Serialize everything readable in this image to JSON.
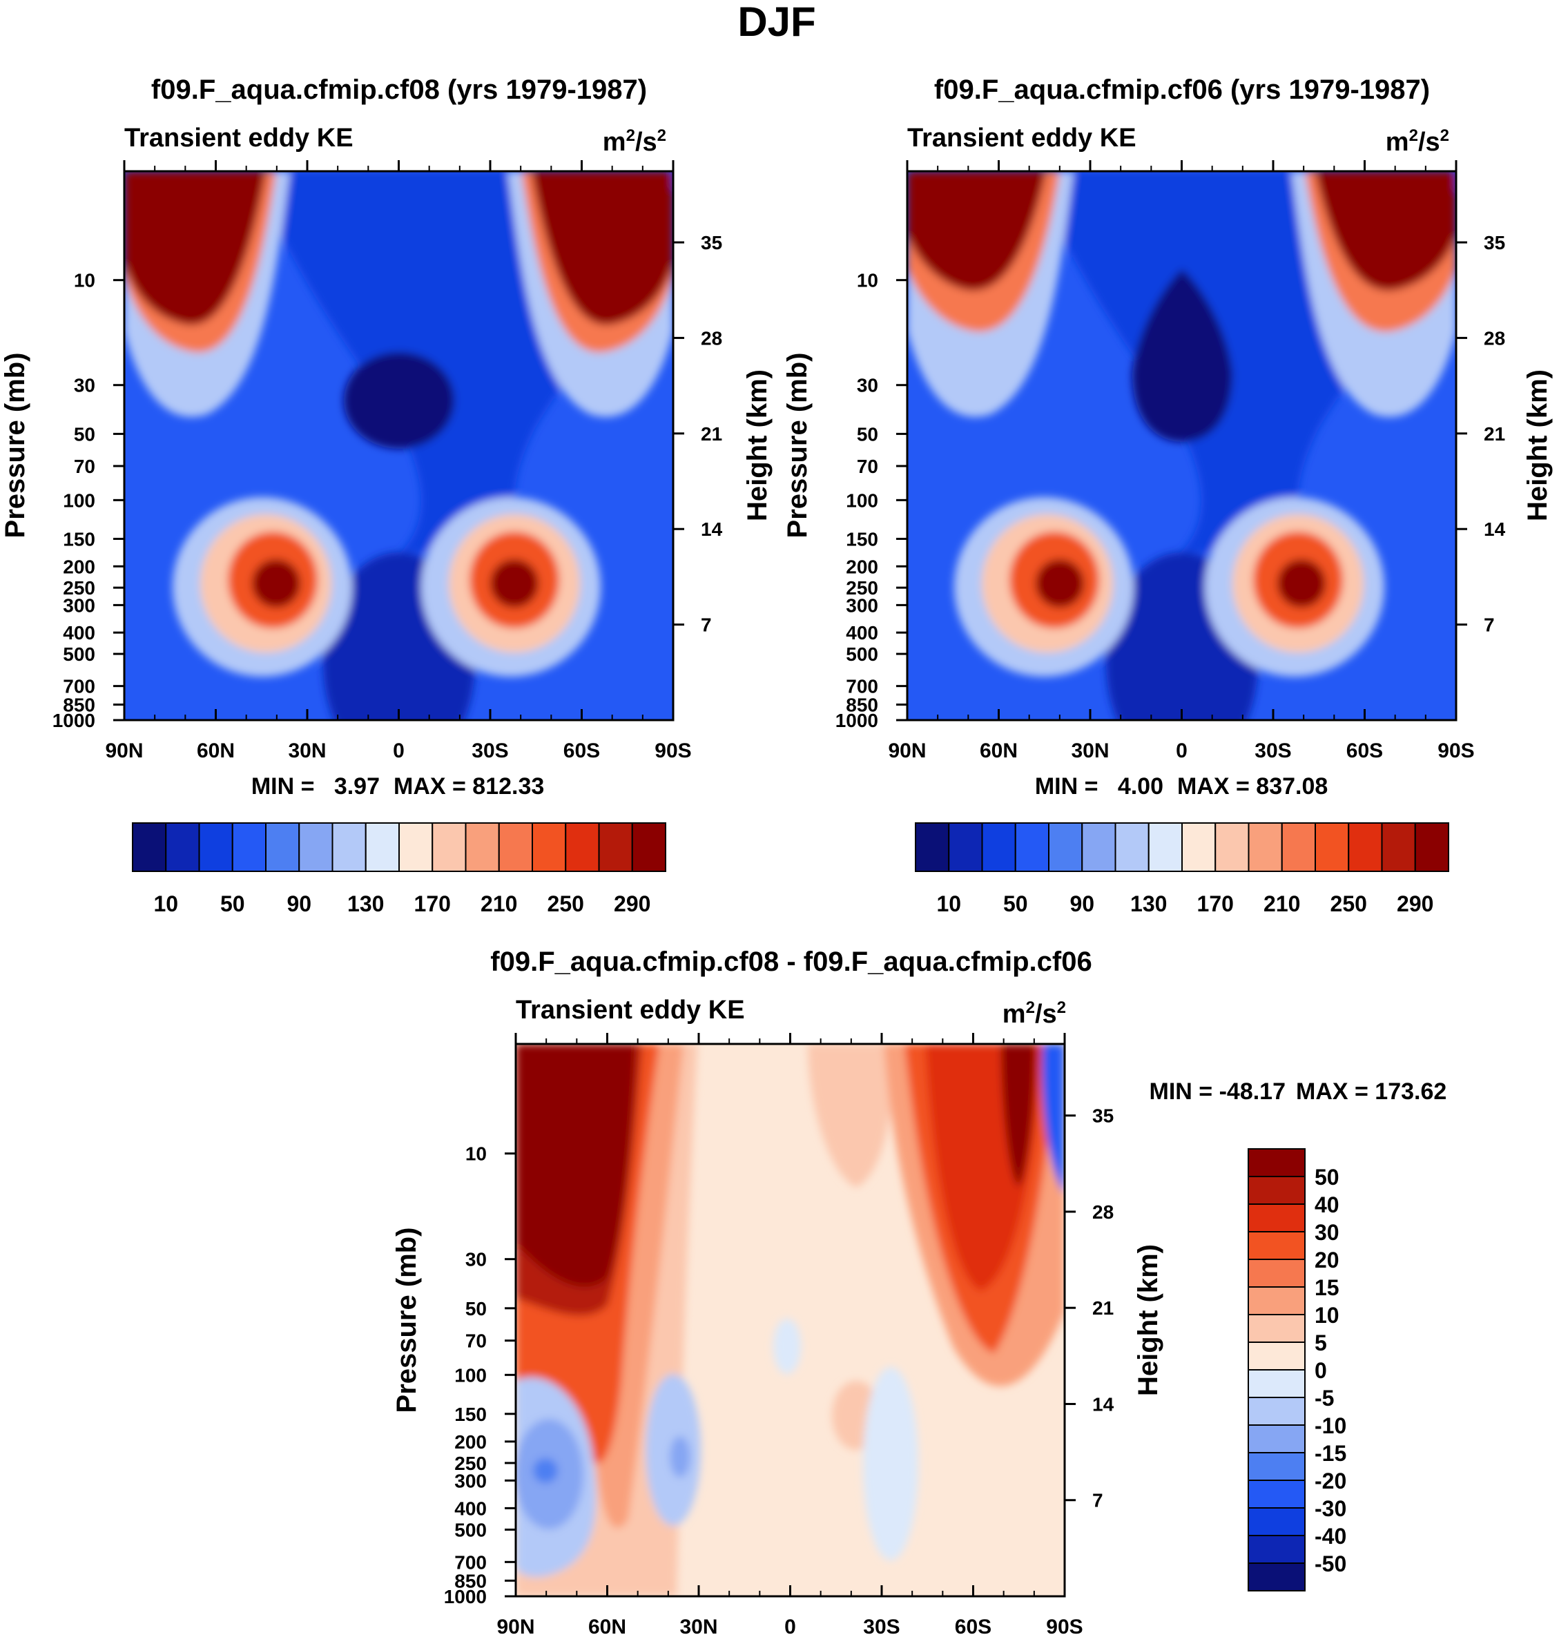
{
  "figure_title": "DJF",
  "chart_data": [
    {
      "type": "heatmap",
      "title": "f09.F_aqua.cfmip.cf08 (yrs 1979-1987)",
      "subtitle_left": "Transient eddy KE",
      "units": "m²/s²",
      "units_base": "m",
      "units_mid": "/s",
      "units_sup": "2",
      "xlabel": "",
      "ylabel": "Pressure (mb)",
      "ylabel_right": "Height (km)",
      "x_ticks": [
        "90N",
        "60N",
        "30N",
        "0",
        "30S",
        "60S",
        "90S"
      ],
      "y_ticks": [
        "10",
        "30",
        "50",
        "70",
        "100",
        "150",
        "200",
        "250",
        "300",
        "400",
        "500",
        "700",
        "850",
        "1000"
      ],
      "y_ticks_right": [
        "35",
        "28",
        "21",
        "14",
        "7"
      ],
      "min_label": "MIN =   3.97",
      "max_label": "MAX = 812.33",
      "colorbar_labels": [
        "10",
        "50",
        "90",
        "130",
        "170",
        "210",
        "250",
        "290"
      ],
      "levels_note": "contour interval 20 from 10 to 290"
    },
    {
      "type": "heatmap",
      "title": "f09.F_aqua.cfmip.cf06 (yrs 1979-1987)",
      "subtitle_left": "Transient eddy KE",
      "units": "m²/s²",
      "units_base": "m",
      "units_mid": "/s",
      "units_sup": "2",
      "xlabel": "",
      "ylabel": "Pressure (mb)",
      "ylabel_right": "Height (km)",
      "x_ticks": [
        "90N",
        "60N",
        "30N",
        "0",
        "30S",
        "60S",
        "90S"
      ],
      "y_ticks": [
        "10",
        "30",
        "50",
        "70",
        "100",
        "150",
        "200",
        "250",
        "300",
        "400",
        "500",
        "700",
        "850",
        "1000"
      ],
      "y_ticks_right": [
        "35",
        "28",
        "21",
        "14",
        "7"
      ],
      "min_label": "MIN =   4.00",
      "max_label": "MAX = 837.08",
      "colorbar_labels": [
        "10",
        "50",
        "90",
        "130",
        "170",
        "210",
        "250",
        "290"
      ]
    },
    {
      "type": "heatmap",
      "title": "f09.F_aqua.cfmip.cf08 - f09.F_aqua.cfmip.cf06",
      "subtitle_left": "Transient eddy KE",
      "units": "m²/s²",
      "units_base": "m",
      "units_mid": "/s",
      "units_sup": "2",
      "xlabel": "",
      "ylabel": "Pressure (mb)",
      "ylabel_right": "Height (km)",
      "x_ticks": [
        "90N",
        "60N",
        "30N",
        "0",
        "30S",
        "60S",
        "90S"
      ],
      "y_ticks": [
        "10",
        "30",
        "50",
        "70",
        "100",
        "150",
        "200",
        "250",
        "300",
        "400",
        "500",
        "700",
        "850",
        "1000"
      ],
      "y_ticks_right": [
        "35",
        "28",
        "21",
        "14",
        "7"
      ],
      "min_label": "MIN = -48.17",
      "max_label": "MAX = 173.62",
      "colorbar_labels": [
        "50",
        "40",
        "30",
        "20",
        "15",
        "10",
        "5",
        "0",
        "-5",
        "-10",
        "-15",
        "-20",
        "-30",
        "-40",
        "-50"
      ]
    }
  ],
  "colors": {
    "sequential": [
      "#0a1077",
      "#0d26b4",
      "#0f3fe0",
      "#2459f5",
      "#4d7ff2",
      "#86a6f3",
      "#b3c9f8",
      "#dce9fb",
      "#fde8d8",
      "#fbc7ae",
      "#f9a07c",
      "#f6784f",
      "#f25322",
      "#e02f0f",
      "#b41a0a",
      "#8b0000"
    ],
    "diverging": [
      "#8b0000",
      "#b41a0a",
      "#e02f0f",
      "#f25322",
      "#f6784f",
      "#f9a07c",
      "#fbc7ae",
      "#fde8d8",
      "#dce9fb",
      "#b3c9f8",
      "#86a6f3",
      "#4d7ff2",
      "#2459f5",
      "#0f3fe0",
      "#0d26b4",
      "#0a1077"
    ]
  }
}
